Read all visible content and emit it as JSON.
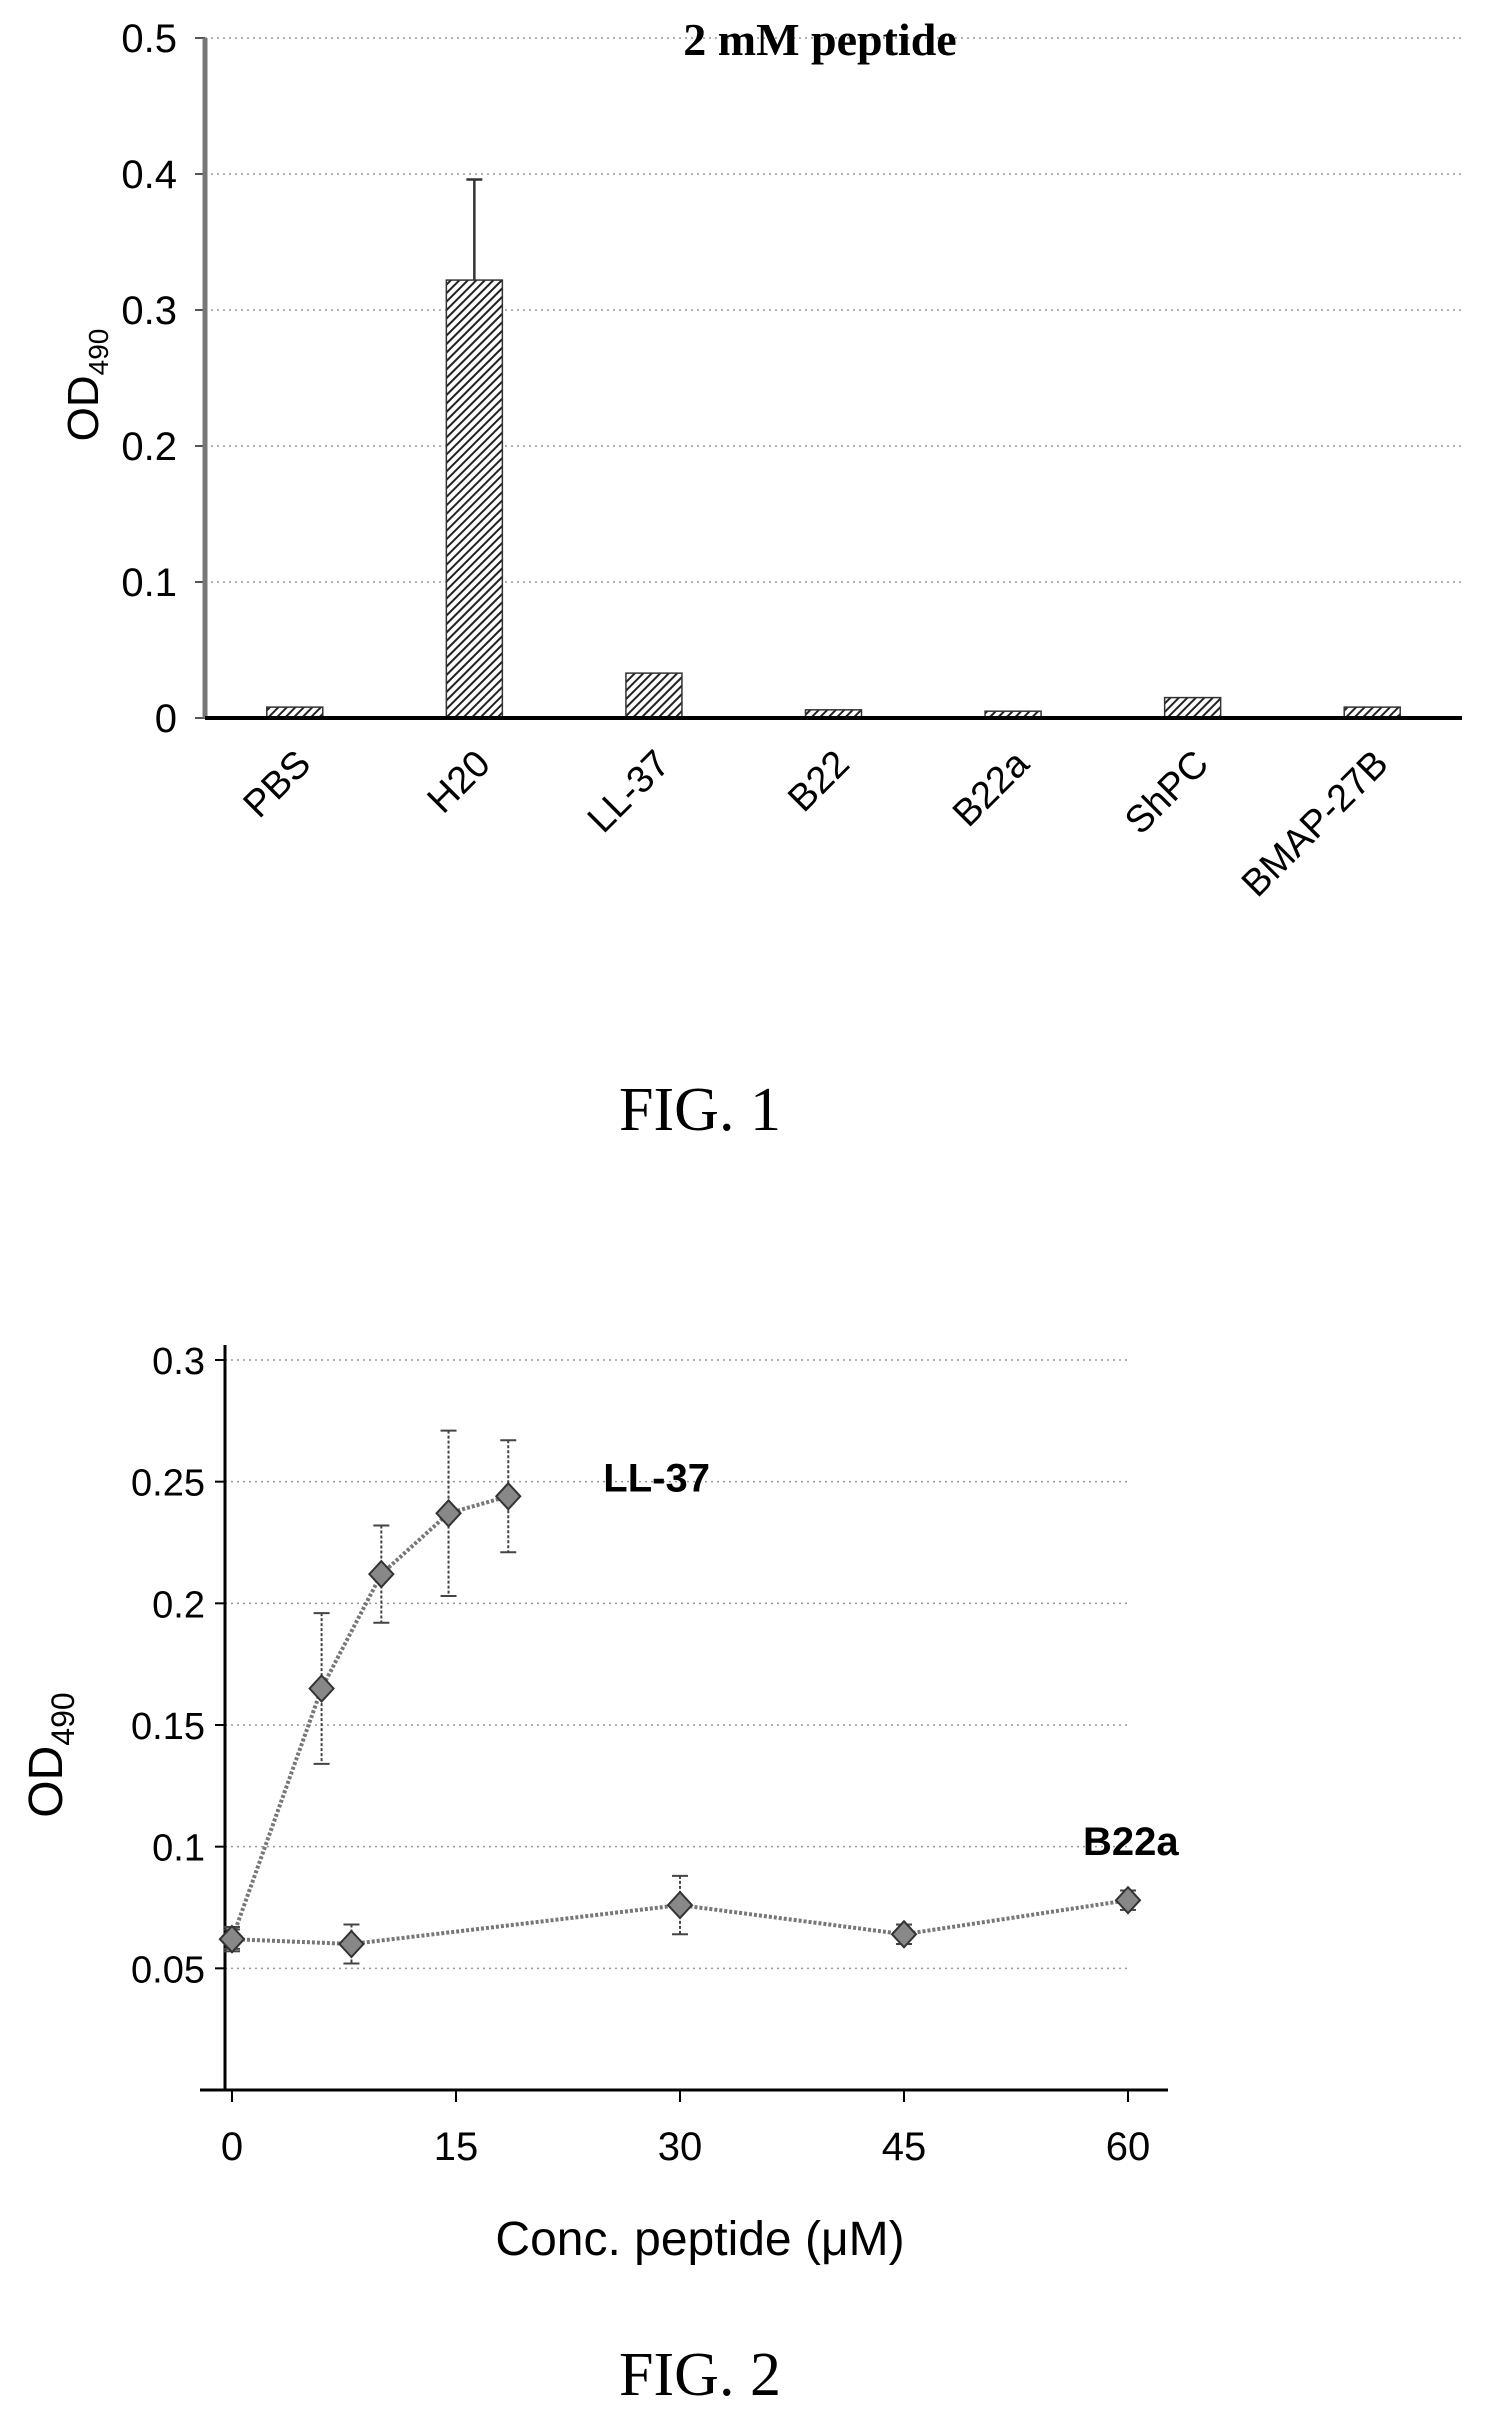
{
  "chart_data": [
    {
      "type": "bar",
      "title": "2 mM peptide",
      "ylabel": "OD",
      "ylabel_sub": "490",
      "categories": [
        "PBS",
        "H20",
        "LL-37",
        "B22",
        "B22a",
        "ShPC",
        "BMAP-27B"
      ],
      "values": [
        0.008,
        0.322,
        0.033,
        0.006,
        0.005,
        0.015,
        0.008
      ],
      "errors": [
        0,
        0.074,
        0,
        0,
        0,
        0,
        0
      ],
      "ylim": [
        0,
        0.5
      ],
      "yticks": [
        "0",
        "0.1",
        "0.2",
        "0.3",
        "0.4",
        "0.5"
      ],
      "grid": true,
      "figure_caption": "FIG. 1"
    },
    {
      "type": "line",
      "xlabel": "Conc. peptide (μM)",
      "ylabel": "OD",
      "ylabel_sub": "490",
      "xlim": [
        0,
        60
      ],
      "ylim": [
        0,
        0.3
      ],
      "xticks": [
        "0",
        "15",
        "30",
        "45",
        "60"
      ],
      "yticks": [
        "0.05",
        "0.1",
        "0.15",
        "0.2",
        "0.25",
        "0.3"
      ],
      "grid": true,
      "series": [
        {
          "name": "LL-37",
          "x": [
            0,
            6,
            10,
            14.5,
            18.5
          ],
          "y": [
            0.062,
            0.165,
            0.212,
            0.237,
            0.244
          ],
          "err": [
            0.005,
            0.031,
            0.02,
            0.034,
            0.023
          ]
        },
        {
          "name": "B22a",
          "x": [
            0,
            8,
            30,
            45,
            60
          ],
          "y": [
            0.062,
            0.06,
            0.076,
            0.064,
            0.078
          ],
          "err": [
            0.004,
            0.008,
            0.012,
            0.004,
            0.004
          ]
        }
      ],
      "figure_caption": "FIG. 2"
    }
  ]
}
